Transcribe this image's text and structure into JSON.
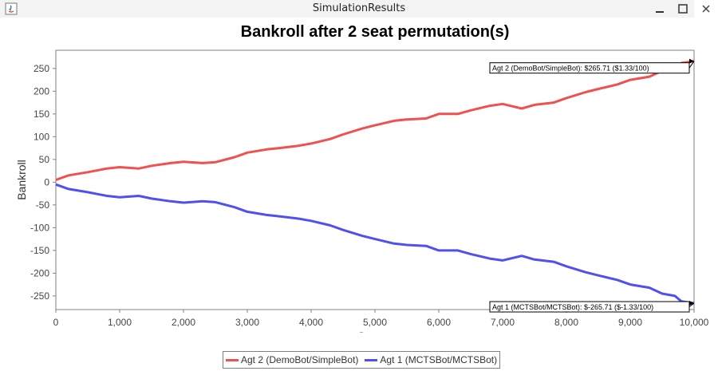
{
  "window": {
    "title": "SimulationResults",
    "icon": "java-icon",
    "controls": [
      "minimize",
      "maximize",
      "close"
    ]
  },
  "colors": {
    "agt2": "#f05050",
    "agt1": "#5050f0",
    "grid": "#ffffff",
    "plot_bg": "#ffffff"
  },
  "chart_data": {
    "type": "line",
    "title": "Bankroll after 2 seat permutation(s)",
    "xlabel": "Games",
    "ylabel": "Bankroll",
    "xlim": [
      0,
      10000
    ],
    "ylim": [
      -280,
      290
    ],
    "x_ticks": [
      0,
      1000,
      2000,
      3000,
      4000,
      5000,
      6000,
      7000,
      8000,
      9000,
      10000
    ],
    "x_tick_labels": [
      "0",
      "1,000",
      "2,000",
      "3,000",
      "4,000",
      "5,000",
      "6,000",
      "7,000",
      "8,000",
      "9,000",
      "10,000"
    ],
    "y_ticks": [
      250,
      200,
      150,
      100,
      50,
      0,
      -50,
      -100,
      -150,
      -200,
      -250
    ],
    "y_tick_labels": [
      "250",
      "200",
      "150",
      "100",
      "50",
      "0",
      "-50",
      "-100",
      "-150",
      "-200",
      "-250"
    ],
    "legend_position": "bottom",
    "series": [
      {
        "name": "Agt 2 (DemoBot/SimpleBot)",
        "color": "#f05050",
        "end_label": "Agt 2 (DemoBot/SimpleBot): $265.71 ($1.33/100)",
        "x": [
          0,
          200,
          500,
          800,
          1000,
          1300,
          1500,
          1800,
          2000,
          2300,
          2500,
          2800,
          3000,
          3300,
          3500,
          3800,
          4000,
          4300,
          4500,
          4800,
          5000,
          5300,
          5500,
          5800,
          6000,
          6300,
          6500,
          6800,
          7000,
          7300,
          7500,
          7800,
          8000,
          8300,
          8500,
          8800,
          9000,
          9300,
          9500,
          9700,
          9800,
          10000
        ],
        "values": [
          5,
          15,
          22,
          30,
          33,
          30,
          36,
          42,
          45,
          42,
          44,
          55,
          65,
          72,
          75,
          80,
          85,
          95,
          105,
          118,
          125,
          135,
          138,
          140,
          150,
          150,
          158,
          168,
          172,
          162,
          170,
          175,
          185,
          198,
          205,
          215,
          225,
          232,
          245,
          250,
          262,
          266
        ]
      },
      {
        "name": "Agt 1 (MCTSBot/MCTSBot)",
        "color": "#5050f0",
        "end_label": "Agt 1 (MCTSBot/MCTSBot): $-265.71 ($-1.33/100)",
        "x": [
          0,
          200,
          500,
          800,
          1000,
          1300,
          1500,
          1800,
          2000,
          2300,
          2500,
          2800,
          3000,
          3300,
          3500,
          3800,
          4000,
          4300,
          4500,
          4800,
          5000,
          5300,
          5500,
          5800,
          6000,
          6300,
          6500,
          6800,
          7000,
          7300,
          7500,
          7800,
          8000,
          8300,
          8500,
          8800,
          9000,
          9300,
          9500,
          9700,
          9800,
          10000
        ],
        "values": [
          -5,
          -15,
          -22,
          -30,
          -33,
          -30,
          -36,
          -42,
          -45,
          -42,
          -44,
          -55,
          -65,
          -72,
          -75,
          -80,
          -85,
          -95,
          -105,
          -118,
          -125,
          -135,
          -138,
          -140,
          -150,
          -150,
          -158,
          -168,
          -172,
          -162,
          -170,
          -175,
          -185,
          -198,
          -205,
          -215,
          -225,
          -232,
          -245,
          -250,
          -262,
          -266
        ]
      }
    ]
  }
}
